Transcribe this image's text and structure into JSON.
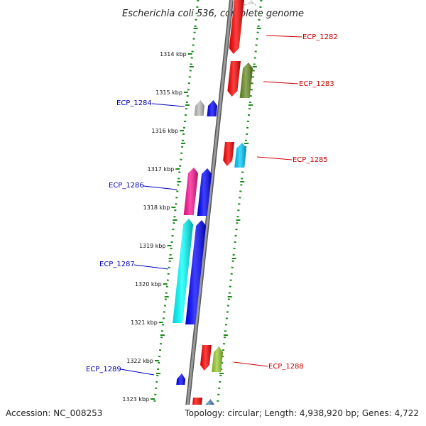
{
  "title": "Escherichia coli 536, complete genome",
  "footer": {
    "accession": "Accession: NC_008253",
    "summary": "Topology: circular; Length: 4,938,920 bp; Genes: 4,722"
  },
  "ticks": [
    "1314 kbp",
    "1315 kbp",
    "1316 kbp",
    "1317 kbp",
    "1318 kbp",
    "1319 kbp",
    "1320 kbp",
    "1321 kbp",
    "1322 kbp",
    "1323 kbp"
  ],
  "gene_labels": {
    "ecp_1282": "ECP_1282",
    "ecp_1283": "ECP_1283",
    "ecp_1284": "ECP_1284",
    "ecp_1285": "ECP_1285",
    "ecp_1286": "ECP_1286",
    "ecp_1287": "ECP_1287",
    "ecp_1288": "ECP_1288",
    "ecp_1289": "ECP_1289"
  },
  "colors": {
    "backbone": "#808080",
    "ruler_dots": "#1a8a1a",
    "forward_label": "#cc0000",
    "reverse_label": "#0000bb",
    "red": "#ff0000",
    "olive": "#6b8e23",
    "gray": "#bdbdbd",
    "blue": "#0000ff",
    "cyan": "#00ccff",
    "pink": "#ff1493",
    "aqua": "#00ffff",
    "lime": "#9acd32",
    "steel": "#4682b4"
  }
}
